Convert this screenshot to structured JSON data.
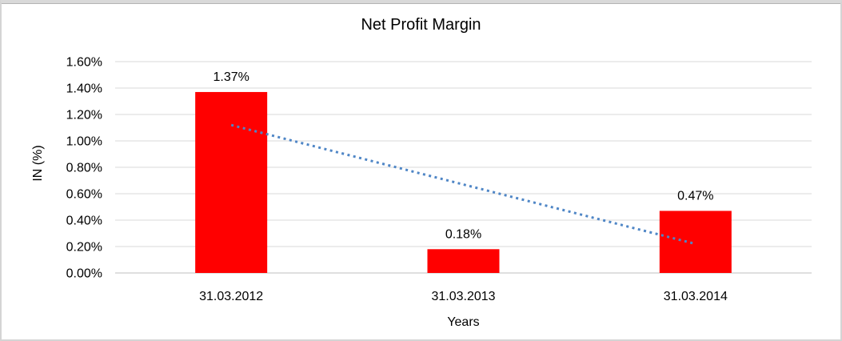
{
  "chart_data": {
    "type": "bar",
    "title": "Net Profit Margin",
    "xlabel": "Years",
    "ylabel": "IN (%)",
    "categories": [
      "31.03.2012",
      "31.03.2013",
      "31.03.2014"
    ],
    "values": [
      1.37,
      0.18,
      0.47
    ],
    "data_labels": [
      "1.37%",
      "0.18%",
      "0.47%"
    ],
    "yticks": [
      "1.60%",
      "1.40%",
      "1.20%",
      "1.00%",
      "0.80%",
      "0.60%",
      "0.40%",
      "0.20%",
      "0.00%"
    ],
    "ylim": [
      0,
      1.6
    ],
    "ytick_step": 0.2,
    "grid": true,
    "legend": "none",
    "bar_color": "#ff0000",
    "gridline_color": "#d9d9d9",
    "axis_line_color": "#bfbfbf",
    "trendline": {
      "type": "linear",
      "style": "dotted",
      "color": "#4f86c6",
      "start_value": 1.12,
      "end_value": 0.22
    }
  }
}
